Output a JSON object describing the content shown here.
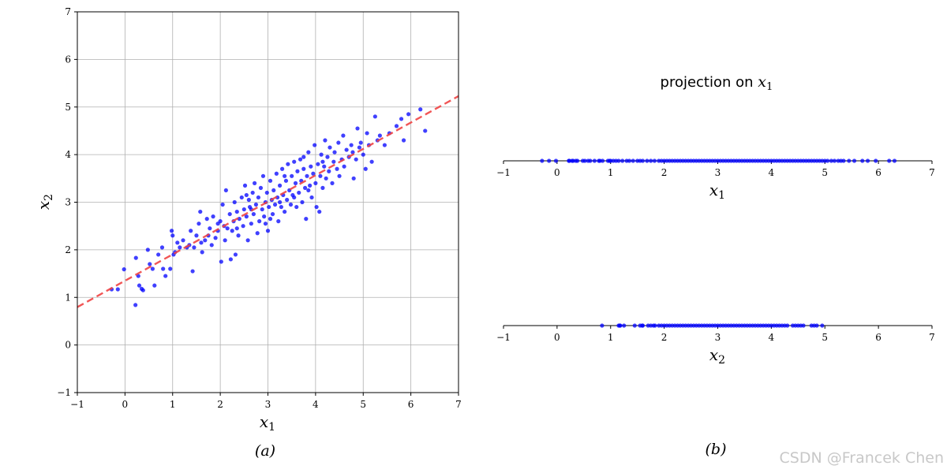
{
  "chart_data": [
    {
      "type": "scatter",
      "panel": "(a)",
      "xlabel": "x1",
      "ylabel": "x2",
      "xlim": [
        -1,
        7
      ],
      "ylim": [
        -1,
        7
      ],
      "xticks": [
        -1,
        0,
        1,
        2,
        3,
        4,
        5,
        6,
        7
      ],
      "yticks": [
        -1,
        0,
        1,
        2,
        3,
        4,
        5,
        6,
        7
      ],
      "grid": true,
      "series": [
        {
          "name": "",
          "color": "#0000ff",
          "points": [
            [
              -0.28,
              1.17
            ],
            [
              -0.15,
              1.17
            ],
            [
              -0.02,
              1.59
            ],
            [
              0.22,
              0.84
            ],
            [
              0.23,
              1.83
            ],
            [
              0.28,
              1.45
            ],
            [
              0.3,
              1.25
            ],
            [
              0.35,
              1.18
            ],
            [
              0.38,
              1.15
            ],
            [
              0.48,
              2.0
            ],
            [
              0.52,
              1.7
            ],
            [
              0.58,
              1.6
            ],
            [
              0.62,
              1.25
            ],
            [
              0.7,
              1.9
            ],
            [
              0.78,
              2.05
            ],
            [
              0.8,
              1.6
            ],
            [
              0.85,
              1.45
            ],
            [
              0.95,
              1.6
            ],
            [
              0.98,
              2.4
            ],
            [
              1.0,
              2.3
            ],
            [
              1.02,
              1.9
            ],
            [
              1.05,
              1.95
            ],
            [
              1.1,
              2.15
            ],
            [
              1.15,
              2.05
            ],
            [
              1.22,
              2.2
            ],
            [
              1.3,
              2.05
            ],
            [
              1.35,
              2.1
            ],
            [
              1.38,
              2.4
            ],
            [
              1.45,
              2.05
            ],
            [
              1.42,
              1.55
            ],
            [
              1.5,
              2.3
            ],
            [
              1.55,
              2.55
            ],
            [
              1.58,
              2.8
            ],
            [
              1.6,
              2.15
            ],
            [
              1.62,
              1.95
            ],
            [
              1.68,
              2.2
            ],
            [
              1.72,
              2.65
            ],
            [
              1.75,
              2.3
            ],
            [
              1.78,
              2.45
            ],
            [
              1.82,
              2.1
            ],
            [
              1.85,
              2.7
            ],
            [
              1.9,
              2.25
            ],
            [
              1.95,
              2.4
            ],
            [
              2.0,
              2.6
            ],
            [
              2.02,
              1.75
            ],
            [
              2.05,
              2.95
            ],
            [
              2.08,
              2.5
            ],
            [
              2.1,
              2.2
            ],
            [
              2.12,
              3.25
            ],
            [
              2.15,
              2.45
            ],
            [
              2.2,
              2.75
            ],
            [
              2.22,
              1.8
            ],
            [
              2.25,
              2.4
            ],
            [
              2.28,
              2.6
            ],
            [
              2.3,
              3.0
            ],
            [
              2.32,
              1.9
            ],
            [
              2.35,
              2.8
            ],
            [
              2.38,
              2.3
            ],
            [
              2.4,
              2.65
            ],
            [
              2.45,
              3.1
            ],
            [
              2.48,
              2.5
            ],
            [
              2.5,
              2.85
            ],
            [
              2.52,
              3.35
            ],
            [
              2.55,
              2.7
            ],
            [
              2.58,
              2.2
            ],
            [
              2.6,
              3.05
            ],
            [
              2.62,
              2.9
            ],
            [
              2.65,
              2.55
            ],
            [
              2.68,
              3.2
            ],
            [
              2.7,
              2.75
            ],
            [
              2.72,
              3.4
            ],
            [
              2.75,
              2.95
            ],
            [
              2.78,
              2.35
            ],
            [
              2.8,
              3.1
            ],
            [
              2.82,
              2.6
            ],
            [
              2.85,
              3.3
            ],
            [
              2.88,
              2.85
            ],
            [
              2.9,
              3.55
            ],
            [
              2.92,
              2.7
            ],
            [
              2.95,
              3.0
            ],
            [
              2.98,
              3.2
            ],
            [
              3.0,
              2.4
            ],
            [
              3.02,
              2.9
            ],
            [
              3.05,
              3.45
            ],
            [
              3.08,
              3.05
            ],
            [
              3.1,
              2.75
            ],
            [
              3.12,
              3.25
            ],
            [
              3.15,
              2.95
            ],
            [
              3.18,
              3.6
            ],
            [
              3.2,
              3.1
            ],
            [
              3.22,
              2.6
            ],
            [
              3.25,
              3.35
            ],
            [
              3.28,
              2.9
            ],
            [
              3.3,
              3.7
            ],
            [
              3.32,
              3.15
            ],
            [
              3.35,
              2.8
            ],
            [
              3.38,
              3.45
            ],
            [
              3.4,
              3.05
            ],
            [
              3.42,
              3.8
            ],
            [
              3.45,
              3.25
            ],
            [
              3.48,
              2.95
            ],
            [
              3.5,
              3.55
            ],
            [
              3.52,
              3.15
            ],
            [
              3.55,
              3.85
            ],
            [
              3.58,
              3.4
            ],
            [
              3.6,
              2.9
            ],
            [
              3.62,
              3.65
            ],
            [
              3.65,
              3.2
            ],
            [
              3.68,
              3.9
            ],
            [
              3.7,
              3.45
            ],
            [
              3.72,
              3.0
            ],
            [
              3.75,
              3.7
            ],
            [
              3.78,
              3.3
            ],
            [
              3.8,
              2.65
            ],
            [
              3.82,
              3.55
            ],
            [
              3.85,
              4.05
            ],
            [
              3.88,
              3.35
            ],
            [
              3.9,
              3.75
            ],
            [
              3.92,
              3.1
            ],
            [
              3.95,
              3.6
            ],
            [
              3.98,
              4.2
            ],
            [
              4.0,
              3.4
            ],
            [
              4.02,
              2.9
            ],
            [
              4.05,
              3.8
            ],
            [
              4.08,
              2.8
            ],
            [
              4.1,
              3.55
            ],
            [
              4.12,
              4.0
            ],
            [
              4.15,
              3.3
            ],
            [
              4.18,
              3.75
            ],
            [
              4.2,
              4.3
            ],
            [
              4.22,
              3.5
            ],
            [
              4.25,
              3.95
            ],
            [
              4.28,
              3.65
            ],
            [
              4.3,
              4.15
            ],
            [
              4.35,
              3.4
            ],
            [
              4.38,
              3.85
            ],
            [
              4.4,
              4.05
            ],
            [
              4.45,
              3.7
            ],
            [
              4.48,
              4.25
            ],
            [
              4.5,
              3.55
            ],
            [
              4.55,
              3.9
            ],
            [
              4.58,
              4.4
            ],
            [
              4.6,
              3.75
            ],
            [
              4.65,
              4.1
            ],
            [
              4.7,
              3.95
            ],
            [
              4.75,
              4.2
            ],
            [
              4.78,
              4.05
            ],
            [
              4.8,
              3.5
            ],
            [
              4.85,
              3.9
            ],
            [
              4.88,
              4.55
            ],
            [
              4.92,
              4.15
            ],
            [
              4.95,
              4.25
            ],
            [
              5.0,
              4.0
            ],
            [
              5.05,
              3.7
            ],
            [
              5.08,
              4.45
            ],
            [
              5.12,
              4.2
            ],
            [
              5.18,
              3.85
            ],
            [
              5.25,
              4.8
            ],
            [
              5.3,
              4.3
            ],
            [
              5.35,
              4.4
            ],
            [
              5.45,
              4.2
            ],
            [
              5.55,
              4.45
            ],
            [
              5.7,
              4.6
            ],
            [
              5.8,
              4.75
            ],
            [
              5.85,
              4.3
            ],
            [
              5.95,
              4.85
            ],
            [
              6.2,
              4.95
            ],
            [
              6.3,
              4.5
            ],
            [
              2.55,
              3.15
            ],
            [
              2.95,
              2.55
            ],
            [
              3.25,
              3.0
            ],
            [
              3.55,
              3.1
            ],
            [
              3.85,
              3.25
            ],
            [
              3.05,
              2.65
            ],
            [
              2.35,
              2.45
            ],
            [
              2.65,
              2.85
            ],
            [
              3.35,
              3.55
            ],
            [
              3.75,
              3.95
            ],
            [
              4.15,
              3.85
            ],
            [
              1.95,
              2.55
            ]
          ]
        }
      ],
      "fit_line": {
        "color": "#ef4444",
        "style": "dashed",
        "slope": 0.554,
        "intercept": 1.35
      }
    },
    {
      "type": "strip",
      "panel": "(b)",
      "title_prefix": "projection on ",
      "title_math": "x1",
      "xlim": [
        -1,
        7
      ],
      "xticks": [
        -1,
        0,
        1,
        2,
        3,
        4,
        5,
        6,
        7
      ],
      "strips": [
        {
          "label": "x1",
          "color": "#0000ff",
          "values": [
            -0.28,
            -0.15,
            -0.02,
            0.22,
            0.23,
            0.28,
            0.3,
            0.35,
            0.38,
            0.48,
            0.52,
            0.58,
            0.62,
            0.7,
            0.78,
            0.8,
            0.85,
            0.95,
            0.98,
            1.0,
            1.05,
            1.1,
            1.15,
            1.22,
            1.3,
            1.35,
            1.42,
            1.5,
            1.55,
            1.6,
            1.68,
            1.75,
            1.82,
            1.9,
            1.95,
            2.0,
            2.05,
            2.1,
            2.15,
            2.2,
            2.25,
            2.3,
            2.35,
            2.4,
            2.45,
            2.5,
            2.55,
            2.6,
            2.65,
            2.7,
            2.75,
            2.8,
            2.85,
            2.9,
            2.95,
            3.0,
            3.05,
            3.1,
            3.15,
            3.2,
            3.25,
            3.3,
            3.35,
            3.4,
            3.45,
            3.5,
            3.55,
            3.6,
            3.65,
            3.7,
            3.75,
            3.8,
            3.85,
            3.9,
            3.95,
            4.0,
            4.05,
            4.1,
            4.15,
            4.2,
            4.25,
            4.3,
            4.35,
            4.4,
            4.45,
            4.5,
            4.55,
            4.6,
            4.65,
            4.7,
            4.75,
            4.8,
            4.85,
            4.9,
            4.95,
            5.0,
            5.05,
            5.12,
            5.18,
            5.25,
            5.3,
            5.35,
            5.45,
            5.55,
            5.7,
            5.8,
            5.95,
            6.2,
            6.3
          ]
        },
        {
          "label": "x2",
          "color": "#0000ff",
          "values": [
            0.84,
            1.15,
            1.17,
            1.18,
            1.25,
            1.45,
            1.55,
            1.59,
            1.6,
            1.7,
            1.75,
            1.8,
            1.83,
            1.9,
            1.95,
            2.0,
            2.05,
            2.1,
            2.15,
            2.2,
            2.25,
            2.3,
            2.35,
            2.4,
            2.45,
            2.5,
            2.55,
            2.6,
            2.65,
            2.7,
            2.75,
            2.8,
            2.85,
            2.9,
            2.95,
            3.0,
            3.05,
            3.1,
            3.15,
            3.2,
            3.25,
            3.3,
            3.35,
            3.4,
            3.45,
            3.5,
            3.55,
            3.6,
            3.65,
            3.7,
            3.75,
            3.8,
            3.85,
            3.9,
            3.95,
            4.0,
            4.05,
            4.1,
            4.15,
            4.2,
            4.25,
            4.3,
            4.4,
            4.45,
            4.5,
            4.55,
            4.6,
            4.75,
            4.8,
            4.85,
            4.95
          ]
        }
      ]
    }
  ],
  "watermark": "CSDN @Francek Chen"
}
